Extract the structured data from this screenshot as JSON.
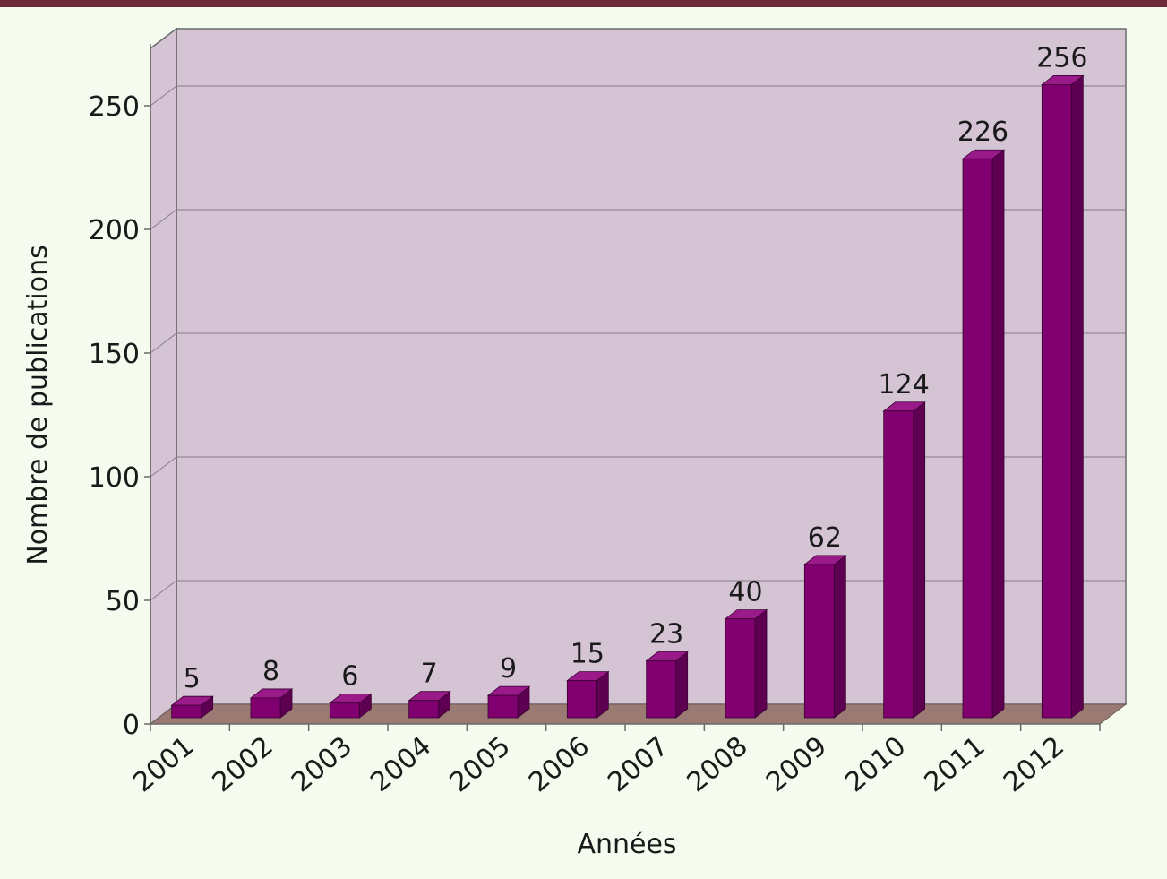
{
  "chart_data": {
    "type": "bar",
    "title": "",
    "xlabel": "Années",
    "ylabel": "Nombre de publications",
    "categories": [
      "2001",
      "2002",
      "2003",
      "2004",
      "2005",
      "2006",
      "2007",
      "2008",
      "2009",
      "2010",
      "2011",
      "2012"
    ],
    "values": [
      5,
      8,
      6,
      7,
      9,
      15,
      23,
      40,
      62,
      124,
      226,
      256
    ],
    "ylim": [
      0,
      275
    ],
    "yticks": [
      0,
      50,
      100,
      150,
      200,
      250
    ],
    "grid": true,
    "legend": "none",
    "three_d": true,
    "colors": {
      "bar_front": "#800070",
      "bar_side": "#5e0052",
      "bar_top": "#9a1a8a",
      "wall": "#d4c4d4",
      "floor": "#9a7a72",
      "page_background": "#f5fbee",
      "top_border": "#6e2a3a",
      "grid_line": "#8a7a8a",
      "axis_line": "#6a6a6a"
    }
  }
}
